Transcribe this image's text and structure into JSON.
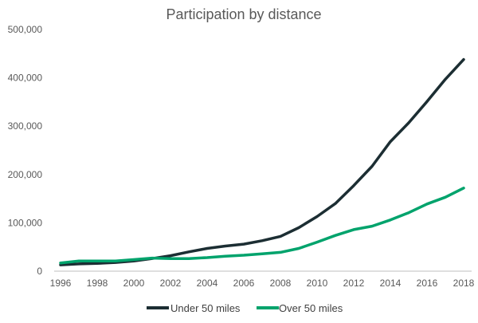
{
  "chart_data": {
    "type": "line",
    "title": "Participation by distance",
    "xlabel": "",
    "ylabel": "",
    "x": [
      1996,
      1997,
      1998,
      1999,
      2000,
      2001,
      2002,
      2003,
      2004,
      2005,
      2006,
      2007,
      2008,
      2009,
      2010,
      2011,
      2012,
      2013,
      2014,
      2015,
      2016,
      2017,
      2018
    ],
    "x_ticks": [
      "1996",
      "1998",
      "2000",
      "2002",
      "2004",
      "2006",
      "2008",
      "2010",
      "2012",
      "2014",
      "2016",
      "2018"
    ],
    "y_ticks": [
      "0",
      "100,000",
      "200,000",
      "300,000",
      "400,000",
      "500,000"
    ],
    "ylim": [
      0,
      500000
    ],
    "xlim": [
      1996,
      2018
    ],
    "grid": false,
    "legend_position": "bottom",
    "series": [
      {
        "name": "Under 50 miles",
        "color": "#1c2e33",
        "values": [
          13000,
          15000,
          16000,
          18000,
          21000,
          26000,
          32000,
          40000,
          47000,
          52000,
          56000,
          63000,
          72000,
          90000,
          113000,
          140000,
          177000,
          217000,
          268000,
          307000,
          351000,
          397000,
          438000
        ]
      },
      {
        "name": "Over 50 miles",
        "color": "#00a36c",
        "values": [
          17000,
          21000,
          21000,
          21000,
          24000,
          27000,
          26000,
          26000,
          28000,
          31000,
          33000,
          36000,
          39000,
          47000,
          60000,
          74000,
          86000,
          93000,
          106000,
          121000,
          139000,
          153000,
          172000
        ]
      }
    ]
  }
}
